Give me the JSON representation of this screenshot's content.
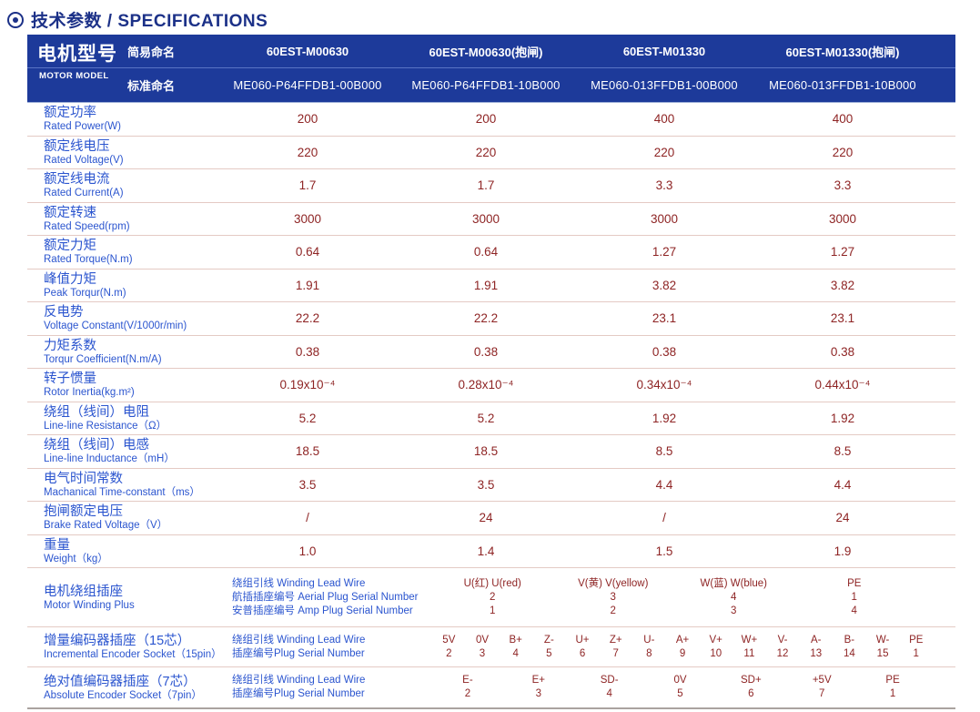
{
  "title": {
    "icon": "circle-dot",
    "text": "技术参数 / SPECIFICATIONS"
  },
  "colors": {
    "header_bg": "#1d3a9a",
    "header_divider": "#5a74c4",
    "title_text": "#1c3188",
    "label_blue": "#2b55cf",
    "value_maroon": "#8e2424",
    "row_separator": "#e4cac4",
    "table_bottom": "#aaa39f",
    "header_text": "#ffffff"
  },
  "header": {
    "motor_model_cn": "电机型号",
    "motor_model_en": "MOTOR MODEL",
    "simple_name_label": "简易命名",
    "standard_name_label": "标准命名",
    "simple_names": [
      "60EST-M00630",
      "60EST-M00630(抱闸)",
      "60EST-M01330",
      "60EST-M01330(抱闸)"
    ],
    "standard_names": [
      "ME060-P64FFDB1-00B000",
      "ME060-P64FFDB1-10B000",
      "ME060-013FFDB1-00B000",
      "ME060-013FFDB1-10B000"
    ]
  },
  "spec_rows": [
    {
      "cn": "额定功率",
      "en": "Rated Power(W)",
      "values": [
        "200",
        "200",
        "400",
        "400"
      ]
    },
    {
      "cn": "额定线电压",
      "en": "Rated Voltage(V)",
      "values": [
        "220",
        "220",
        "220",
        "220"
      ]
    },
    {
      "cn": "额定线电流",
      "en": "Rated Current(A)",
      "values": [
        "1.7",
        "1.7",
        "3.3",
        "3.3"
      ]
    },
    {
      "cn": "额定转速",
      "en": "Rated Speed(rpm)",
      "values": [
        "3000",
        "3000",
        "3000",
        "3000"
      ]
    },
    {
      "cn": "额定力矩",
      "en": "Rated Torque(N.m)",
      "values": [
        "0.64",
        "0.64",
        "1.27",
        "1.27"
      ]
    },
    {
      "cn": "峰值力矩",
      "en": "Peak Torqur(N.m)",
      "values": [
        "1.91",
        "1.91",
        "3.82",
        "3.82"
      ]
    },
    {
      "cn": "反电势",
      "en": "Voltage Constant(V/1000r/min)",
      "values": [
        "22.2",
        "22.2",
        "23.1",
        "23.1"
      ]
    },
    {
      "cn": "力矩系数",
      "en": "Torqur Coefficient(N.m/A)",
      "values": [
        "0.38",
        "0.38",
        "0.38",
        "0.38"
      ]
    },
    {
      "cn": "转子惯量",
      "en": "Rotor Inertia(kg.m²)",
      "values": [
        "0.19x10⁻⁴",
        "0.28x10⁻⁴",
        "0.34x10⁻⁴",
        "0.44x10⁻⁴"
      ]
    },
    {
      "cn": "绕组（线间）电阻",
      "en": "Line-line Resistance（Ω）",
      "values": [
        "5.2",
        "5.2",
        "1.92",
        "1.92"
      ]
    },
    {
      "cn": "绕组（线间）电感",
      "en": "Line-line Inductance（mH）",
      "values": [
        "18.5",
        "18.5",
        "8.5",
        "8.5"
      ]
    },
    {
      "cn": "电气时间常数",
      "en": "Machanical Time-constant（ms）",
      "values": [
        "3.5",
        "3.5",
        "4.4",
        "4.4"
      ]
    },
    {
      "cn": "抱闸额定电压",
      "en": "Brake Rated Voltage（V）",
      "values": [
        "/",
        "24",
        "/",
        "24"
      ]
    },
    {
      "cn": "重量",
      "en": "Weight（kg）",
      "values": [
        "1.0",
        "1.4",
        "1.5",
        "1.9"
      ]
    }
  ],
  "winding_plug_row": {
    "cn": "电机绕组插座",
    "en": "Motor Winding Plus",
    "sub_labels": [
      "绕组引线 Winding Lead Wire",
      "航插插座编号 Aerial Plug Serial Number",
      "安普插座编号 Amp Plug Serial Number"
    ],
    "pins": [
      {
        "name": "U(红) U(red)",
        "aerial": "2",
        "amp": "1"
      },
      {
        "name": "V(黄) V(yellow)",
        "aerial": "3",
        "amp": "2"
      },
      {
        "name": "W(蓝) W(blue)",
        "aerial": "4",
        "amp": "3"
      },
      {
        "name": "PE",
        "aerial": "1",
        "amp": "4"
      }
    ]
  },
  "incremental_encoder_row": {
    "cn": "增量编码器插座（15芯）",
    "en": "Incremental Encoder Socket（15pin）",
    "sub_labels": [
      "绕组引线 Winding Lead Wire",
      "插座编号Plug Serial Number"
    ],
    "pins": [
      {
        "name": "5V",
        "num": "2"
      },
      {
        "name": "0V",
        "num": "3"
      },
      {
        "name": "B+",
        "num": "4"
      },
      {
        "name": "Z-",
        "num": "5"
      },
      {
        "name": "U+",
        "num": "6"
      },
      {
        "name": "Z+",
        "num": "7"
      },
      {
        "name": "U-",
        "num": "8"
      },
      {
        "name": "A+",
        "num": "9"
      },
      {
        "name": "V+",
        "num": "10"
      },
      {
        "name": "W+",
        "num": "11"
      },
      {
        "name": "V-",
        "num": "12"
      },
      {
        "name": "A-",
        "num": "13"
      },
      {
        "name": "B-",
        "num": "14"
      },
      {
        "name": "W-",
        "num": "15"
      },
      {
        "name": "PE",
        "num": "1"
      }
    ]
  },
  "absolute_encoder_row": {
    "cn": "绝对值编码器插座（7芯）",
    "en": "Absolute Encoder Socket（7pin）",
    "sub_labels": [
      "绕组引线 Winding Lead Wire",
      "插座编号Plug Serial Number"
    ],
    "pins": [
      {
        "name": "E-",
        "num": "2"
      },
      {
        "name": "E+",
        "num": "3"
      },
      {
        "name": "SD-",
        "num": "4"
      },
      {
        "name": "0V",
        "num": "5"
      },
      {
        "name": "SD+",
        "num": "6"
      },
      {
        "name": "+5V",
        "num": "7"
      },
      {
        "name": "PE",
        "num": "1"
      }
    ]
  }
}
